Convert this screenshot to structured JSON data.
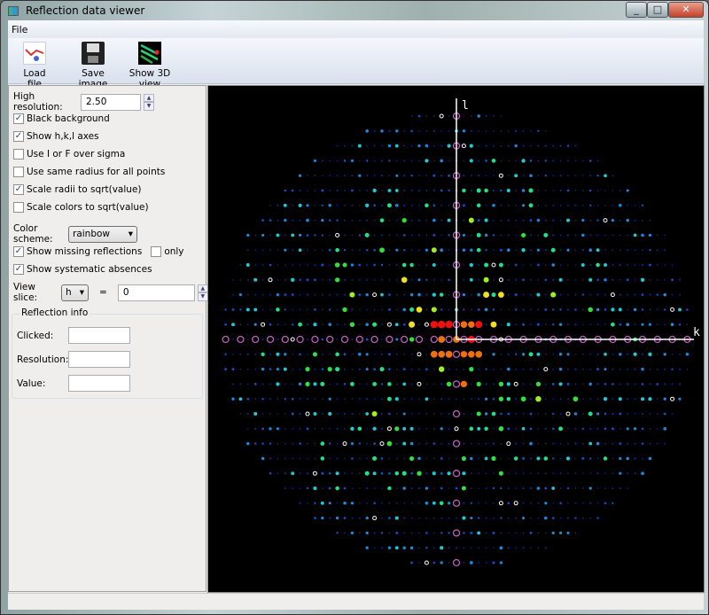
{
  "window": {
    "title": "Reflection data viewer",
    "controls": [
      "minimize",
      "maximize",
      "close"
    ]
  },
  "menu": {
    "items": [
      "File"
    ]
  },
  "toolbar": {
    "load_file": "Load file",
    "save_image": "Save image",
    "show_3d": "Show 3D view"
  },
  "controls": {
    "high_resolution_label": "High resolution:",
    "high_resolution_value": "2.50",
    "checkboxes": [
      {
        "label": "Black background",
        "checked": true
      },
      {
        "label": "Show h,k,l axes",
        "checked": true
      },
      {
        "label": "Use I or F over sigma",
        "checked": false
      },
      {
        "label": "Use same radius for all points",
        "checked": false
      },
      {
        "label": "Scale radii to sqrt(value)",
        "checked": true
      },
      {
        "label": "Scale colors to sqrt(value)",
        "checked": false
      }
    ],
    "color_scheme_label": "Color scheme:",
    "color_scheme_value": "rainbow",
    "show_missing": {
      "label": "Show missing reflections",
      "checked": true
    },
    "only": {
      "label": "only",
      "checked": false
    },
    "show_absences": {
      "label": "Show systematic absences",
      "checked": true
    },
    "view_slice_label": "View slice:",
    "view_slice_axis": "h",
    "equals": "=",
    "view_slice_value": "0"
  },
  "reflection_info": {
    "title": "Reflection info",
    "clicked_label": "Clicked:",
    "resolution_label": "Resolution:",
    "value_label": "Value:",
    "clicked": "",
    "resolution": "",
    "value": ""
  },
  "viewer": {
    "axis_vertical": "l",
    "axis_horizontal": "k",
    "background": "#000000",
    "missing_color": "#c060c0",
    "absence_color": "#ffffff"
  }
}
